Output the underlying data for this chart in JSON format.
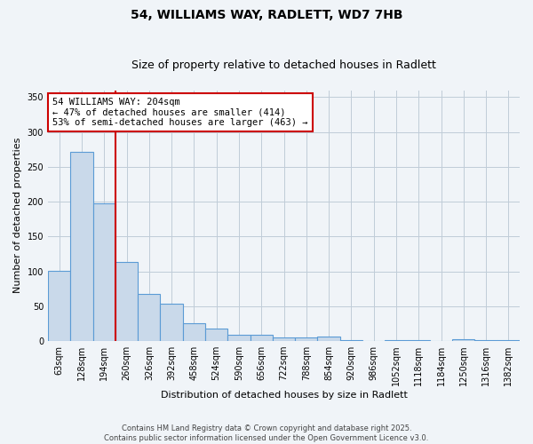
{
  "title1": "54, WILLIAMS WAY, RADLETT, WD7 7HB",
  "title2": "Size of property relative to detached houses in Radlett",
  "xlabel": "Distribution of detached houses by size in Radlett",
  "ylabel": "Number of detached properties",
  "categories": [
    "63sqm",
    "128sqm",
    "194sqm",
    "260sqm",
    "326sqm",
    "392sqm",
    "458sqm",
    "524sqm",
    "590sqm",
    "656sqm",
    "722sqm",
    "788sqm",
    "854sqm",
    "920sqm",
    "986sqm",
    "1052sqm",
    "1118sqm",
    "1184sqm",
    "1250sqm",
    "1316sqm",
    "1382sqm"
  ],
  "values": [
    101,
    271,
    197,
    114,
    68,
    54,
    25,
    18,
    9,
    9,
    5,
    5,
    6,
    2,
    0,
    2,
    2,
    0,
    3,
    2,
    2
  ],
  "bar_color": "#c9d9ea",
  "bar_edge_color": "#5b9bd5",
  "property_line_x": 2.5,
  "annotation_text": "54 WILLIAMS WAY: 204sqm\n← 47% of detached houses are smaller (414)\n53% of semi-detached houses are larger (463) →",
  "annotation_box_color": "#ffffff",
  "annotation_box_edge": "#cc0000",
  "red_line_color": "#cc0000",
  "ylim": [
    0,
    360
  ],
  "yticks": [
    0,
    50,
    100,
    150,
    200,
    250,
    300,
    350
  ],
  "background_color": "#f0f4f8",
  "grid_color": "#c0ccd8",
  "footnote": "Contains HM Land Registry data © Crown copyright and database right 2025.\nContains public sector information licensed under the Open Government Licence v3.0.",
  "title_fontsize": 10,
  "subtitle_fontsize": 9,
  "label_fontsize": 8,
  "tick_fontsize": 7,
  "annot_fontsize": 7.5
}
